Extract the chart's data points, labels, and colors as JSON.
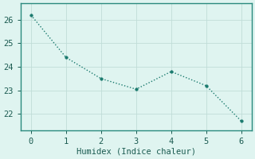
{
  "x": [
    0,
    1,
    2,
    3,
    4,
    5,
    6
  ],
  "y": [
    26.2,
    24.4,
    23.5,
    23.05,
    23.8,
    23.2,
    21.7
  ],
  "line_color": "#1a7a6e",
  "marker": "o",
  "marker_size": 2.5,
  "linewidth": 1.0,
  "xlabel": "Humidex (Indice chaleur)",
  "xlabel_fontsize": 7.5,
  "background_color": "#dff4f0",
  "grid_color": "#c0ddd8",
  "spine_color": "#2a8a7e",
  "yticks": [
    22,
    23,
    24,
    25,
    26
  ],
  "xticks": [
    0,
    1,
    2,
    3,
    4,
    5,
    6
  ],
  "ylim": [
    21.3,
    26.7
  ],
  "xlim": [
    -0.3,
    6.3
  ],
  "tick_fontsize": 7.5
}
